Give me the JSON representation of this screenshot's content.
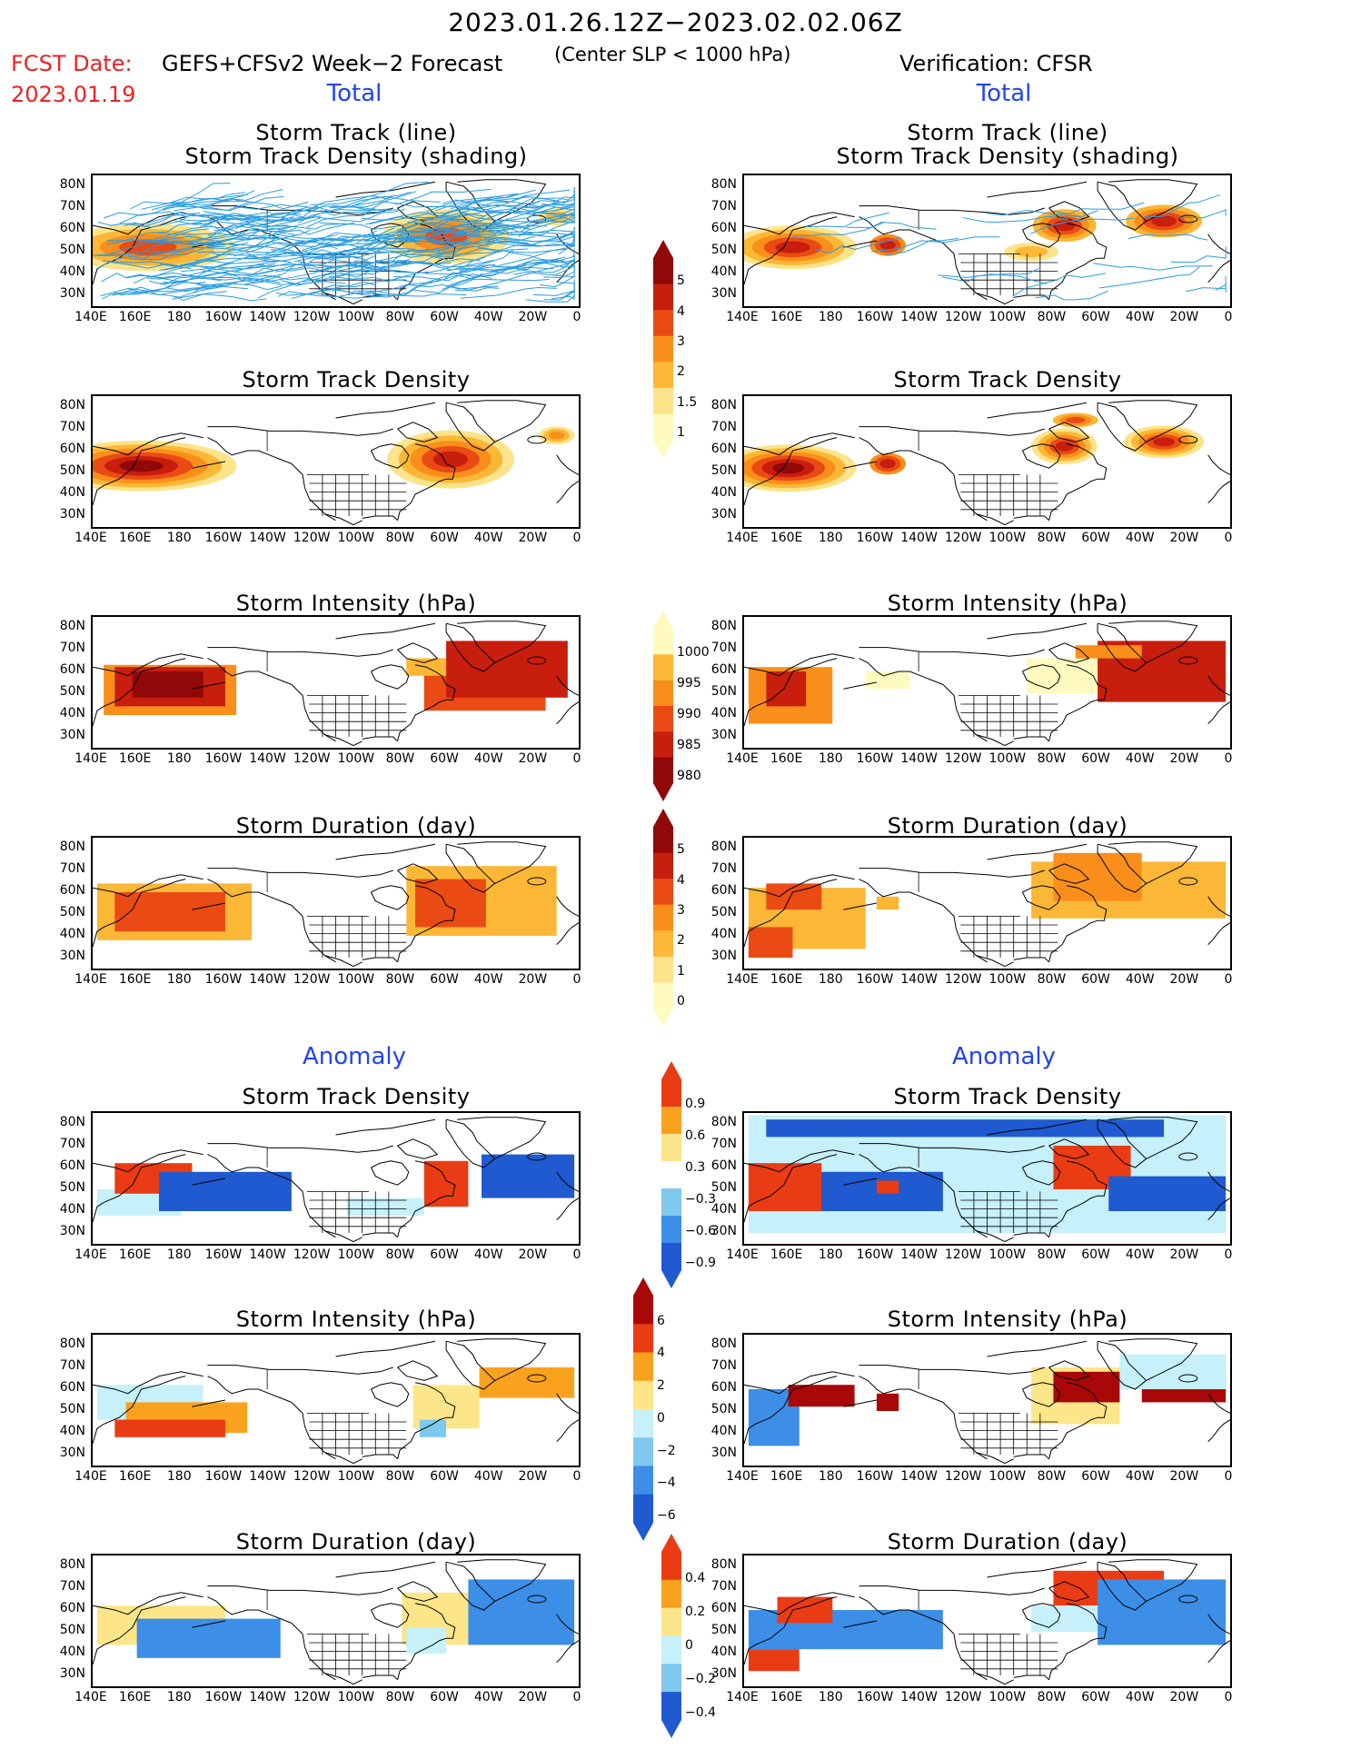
{
  "header": {
    "time_range": "2023.01.26.12Z−2023.02.02.06Z",
    "fcst_label": "FCST Date:",
    "fcst_date": "2023.01.19",
    "model": "GEFS+CFSv2 Week−2 Forecast",
    "center_note": "(Center SLP < 1000 hPa)",
    "verification": "Verification: CFSR"
  },
  "sections": {
    "total": "Total",
    "anomaly": "Anomaly"
  },
  "panel_titles": {
    "track_line": "Storm Track (line)",
    "track_shading": "Storm Track Density (shading)",
    "density": "Storm Track Density",
    "intensity": "Storm Intensity (hPa)",
    "duration": "Storm Duration (day)"
  },
  "axes": {
    "lat_labels": [
      "80N",
      "70N",
      "60N",
      "50N",
      "40N",
      "30N"
    ],
    "lon_labels": [
      "140E",
      "160E",
      "180",
      "160W",
      "140W",
      "120W",
      "100W",
      "80W",
      "60W",
      "40W",
      "20W",
      "0"
    ]
  },
  "colorbars": {
    "density_total": [
      "5",
      "4",
      "3",
      "2",
      "1.5",
      "1"
    ],
    "intensity_total": [
      "1000",
      "995",
      "990",
      "985",
      "980"
    ],
    "duration_total": [
      "5",
      "4",
      "3",
      "2",
      "1",
      "0"
    ],
    "density_anom": [
      "0.9",
      "0.6",
      "0.3",
      "−0.3",
      "−0.6",
      "−0.9"
    ],
    "intensity_anom": [
      "6",
      "4",
      "2",
      "0",
      "−2",
      "−4",
      "−6"
    ],
    "duration_anom": [
      "0.4",
      "0.2",
      "0",
      "−0.2",
      "−0.4"
    ]
  },
  "colors": {
    "section_blue": "#2244ee",
    "date_red": "#e22222",
    "track_line": "#2b9ce0",
    "seq": [
      "#fffac0",
      "#fde38a",
      "#fbb735",
      "#f98f1a",
      "#ea4a14",
      "#c81e0e",
      "#900808"
    ],
    "div_pos": [
      "#fde68a",
      "#f9a21e",
      "#ea3c14",
      "#a80808"
    ],
    "div_neg": [
      "#c6f0fa",
      "#7fc8ee",
      "#3c8ee6",
      "#1f5ad0"
    ]
  }
}
